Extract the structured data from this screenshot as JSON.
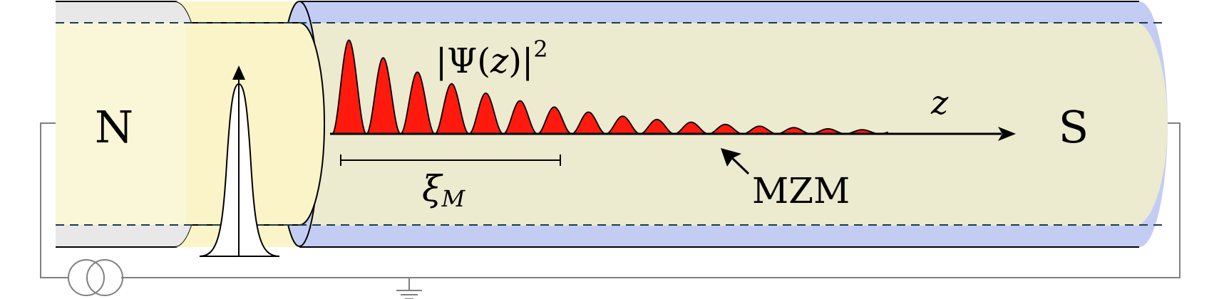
{
  "labels": {
    "normal_lead": "N",
    "superconductor": "S",
    "wavefunction_prefix": "|Ψ(",
    "wavefunction_var": "z",
    "wavefunction_suffix": ")|",
    "wavefunction_exponent": "2",
    "axis_variable": "z",
    "coherence_length_symbol": "ξ",
    "coherence_length_subscript": "M",
    "mode_label": "MZM"
  },
  "colors": {
    "normal_metal_fill": "#e8e8e8",
    "barrier_fill": "#faf6d8",
    "nanowire_shell_fill": "#c3cdf4",
    "nanowire_core_fill": "#eceacf",
    "wavefunction_fill": "#ff1a0d",
    "outline": "#000000",
    "circuit": "#808080",
    "dashed_boundary": "#1c3b4a"
  },
  "icons": {
    "current_source": "current-source-icon",
    "ground": "ground-icon"
  }
}
